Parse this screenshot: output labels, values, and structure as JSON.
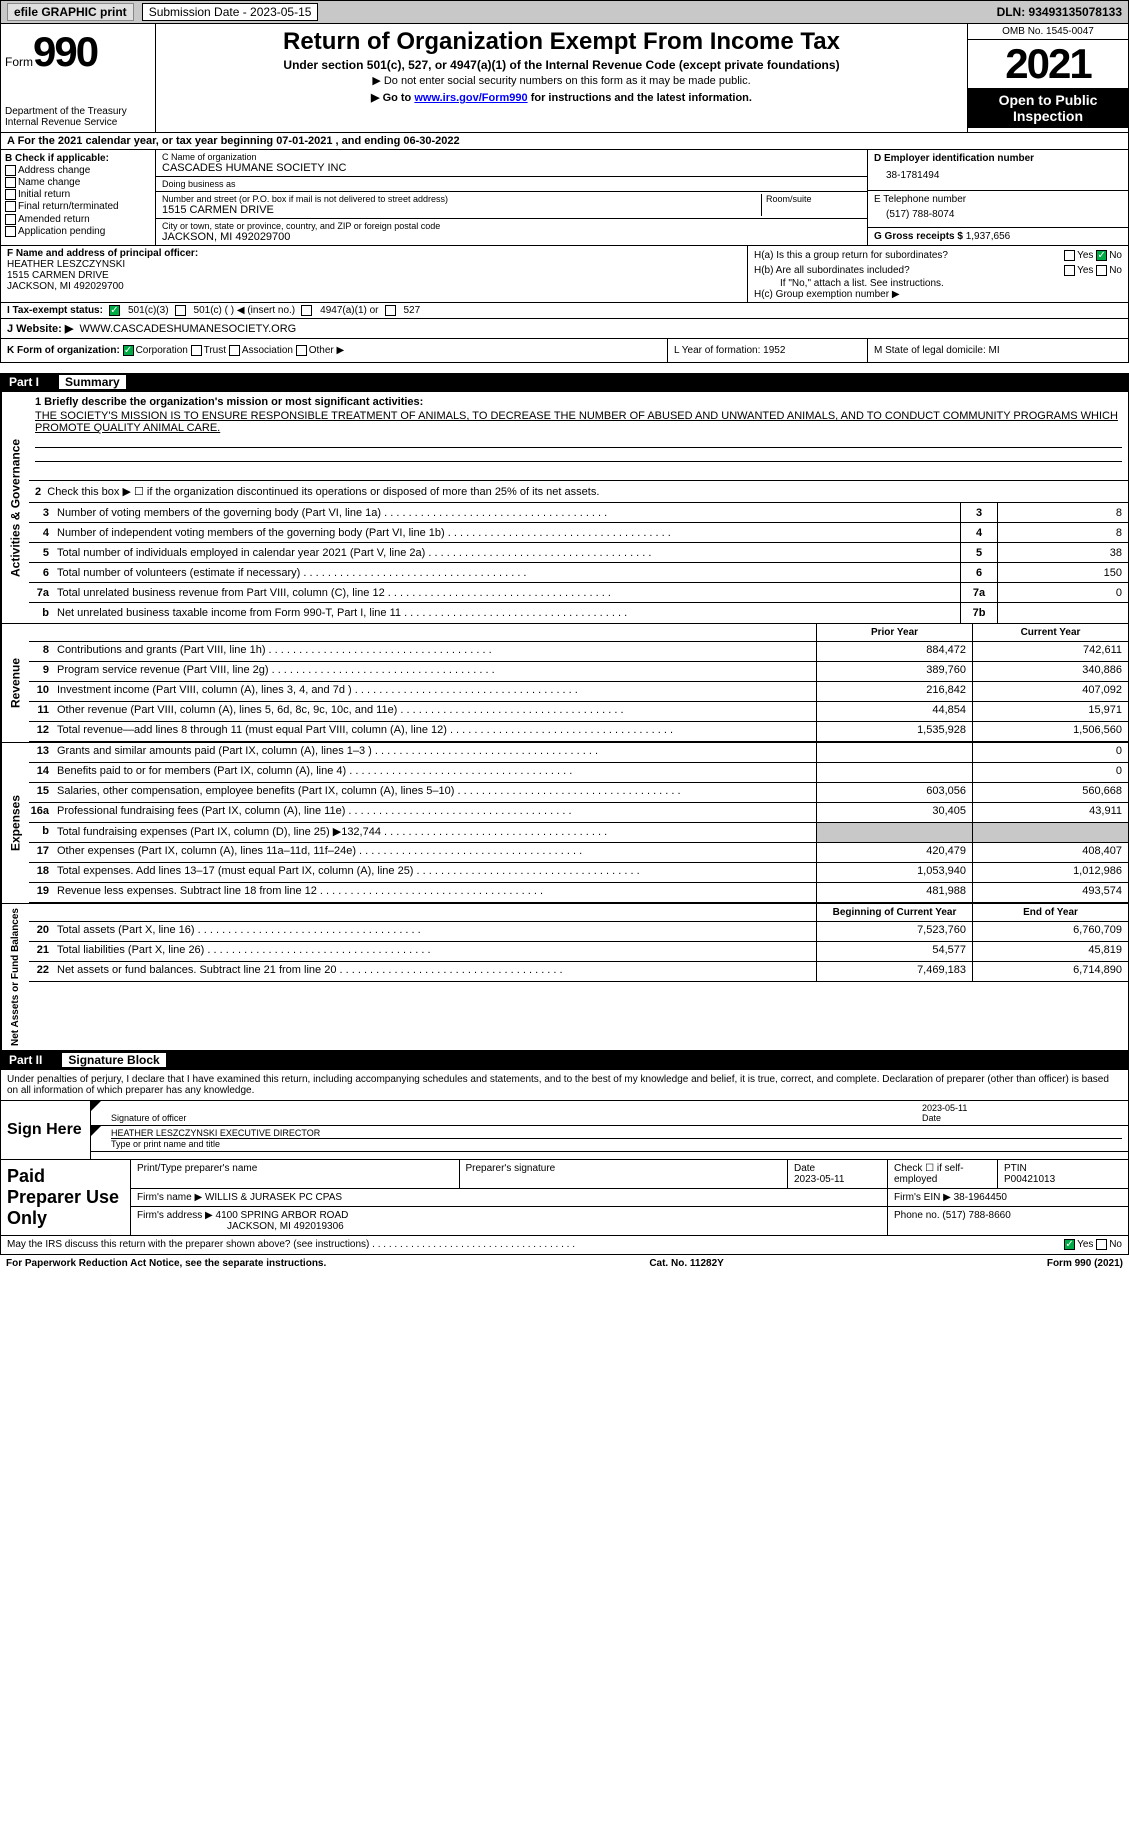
{
  "topbar": {
    "efile": "efile GRAPHIC print",
    "submission_label": "Submission Date - 2023-05-15",
    "dln": "DLN: 93493135078133"
  },
  "header": {
    "form_word": "Form",
    "form_num": "990",
    "dept": "Department of the Treasury",
    "irs": "Internal Revenue Service",
    "title": "Return of Organization Exempt From Income Tax",
    "sub1": "Under section 501(c), 527, or 4947(a)(1) of the Internal Revenue Code (except private foundations)",
    "sub2": "▶ Do not enter social security numbers on this form as it may be made public.",
    "sub3_pre": "▶ Go to ",
    "sub3_link": "www.irs.gov/Form990",
    "sub3_post": " for instructions and the latest information.",
    "omb": "OMB No. 1545-0047",
    "year": "2021",
    "inspect": "Open to Public Inspection"
  },
  "row_a": "A For the 2021 calendar year, or tax year beginning 07-01-2021    , and ending 06-30-2022",
  "col_b": {
    "hdr": "B Check if applicable:",
    "opts": [
      "Address change",
      "Name change",
      "Initial return",
      "Final return/terminated",
      "Amended return",
      "Application pending"
    ]
  },
  "col_c": {
    "name_lbl": "C Name of organization",
    "name": "CASCADES HUMANE SOCIETY INC",
    "dba_lbl": "Doing business as",
    "dba": "",
    "addr_lbl": "Number and street (or P.O. box if mail is not delivered to street address)",
    "room_lbl": "Room/suite",
    "addr": "1515 CARMEN DRIVE",
    "city_lbl": "City or town, state or province, country, and ZIP or foreign postal code",
    "city": "JACKSON, MI  492029700"
  },
  "col_d": {
    "ein_lbl": "D Employer identification number",
    "ein": "38-1781494",
    "tel_lbl": "E Telephone number",
    "tel": "(517) 788-8074",
    "gross_lbl": "G Gross receipts $",
    "gross": "1,937,656"
  },
  "col_f": {
    "lbl": "F Name and address of principal officer:",
    "name": "HEATHER LESZCZYNSKI",
    "addr1": "1515 CARMEN DRIVE",
    "addr2": "JACKSON, MI  492029700"
  },
  "col_h": {
    "ha": "H(a)  Is this a group return for subordinates?",
    "ha_yes": "Yes",
    "ha_no": "No",
    "hb": "H(b)  Are all subordinates included?",
    "hb_yes": "Yes",
    "hb_no": "No",
    "hb_note": "If \"No,\" attach a list. See instructions.",
    "hc": "H(c)  Group exemption number ▶"
  },
  "tax_status": {
    "lbl": "I   Tax-exempt status:",
    "o1": "501(c)(3)",
    "o2": "501(c) (   ) ◀ (insert no.)",
    "o3": "4947(a)(1) or",
    "o4": "527"
  },
  "website": {
    "lbl": "J   Website: ▶",
    "val": "WWW.CASCADESHUMANESOCIETY.ORG"
  },
  "form_org": {
    "k": "K Form of organization:",
    "k_opts": [
      "Corporation",
      "Trust",
      "Association",
      "Other ▶"
    ],
    "l": "L Year of formation: 1952",
    "m": "M State of legal domicile: MI"
  },
  "part1": {
    "num": "Part I",
    "title": "Summary"
  },
  "side_labels": [
    "Activities & Governance",
    "Revenue",
    "Expenses",
    "Net Assets or Fund Balances"
  ],
  "line1": {
    "lbl": "1   Briefly describe the organization's mission or most significant activities:",
    "mission": "THE SOCIETY'S MISSION IS TO ENSURE RESPONSIBLE TREATMENT OF ANIMALS, TO DECREASE THE NUMBER OF ABUSED AND UNWANTED ANIMALS, AND TO CONDUCT COMMUNITY PROGRAMS WHICH PROMOTE QUALITY ANIMAL CARE."
  },
  "line2": "Check this box ▶ ☐  if the organization discontinued its operations or disposed of more than 25% of its net assets.",
  "lines_single": [
    {
      "n": "3",
      "t": "Number of voting members of the governing body (Part VI, line 1a)",
      "bn": "3",
      "v": "8"
    },
    {
      "n": "4",
      "t": "Number of independent voting members of the governing body (Part VI, line 1b)",
      "bn": "4",
      "v": "8"
    },
    {
      "n": "5",
      "t": "Total number of individuals employed in calendar year 2021 (Part V, line 2a)",
      "bn": "5",
      "v": "38"
    },
    {
      "n": "6",
      "t": "Total number of volunteers (estimate if necessary)",
      "bn": "6",
      "v": "150"
    },
    {
      "n": "7a",
      "t": "Total unrelated business revenue from Part VIII, column (C), line 12",
      "bn": "7a",
      "v": "0"
    },
    {
      "n": "b",
      "t": "Net unrelated business taxable income from Form 990-T, Part I, line 11",
      "bn": "7b",
      "v": ""
    }
  ],
  "hdr_prior": "Prior Year",
  "hdr_current": "Current Year",
  "revenue": [
    {
      "n": "8",
      "t": "Contributions and grants (Part VIII, line 1h)",
      "v1": "884,472",
      "v2": "742,611"
    },
    {
      "n": "9",
      "t": "Program service revenue (Part VIII, line 2g)",
      "v1": "389,760",
      "v2": "340,886"
    },
    {
      "n": "10",
      "t": "Investment income (Part VIII, column (A), lines 3, 4, and 7d )",
      "v1": "216,842",
      "v2": "407,092"
    },
    {
      "n": "11",
      "t": "Other revenue (Part VIII, column (A), lines 5, 6d, 8c, 9c, 10c, and 11e)",
      "v1": "44,854",
      "v2": "15,971"
    },
    {
      "n": "12",
      "t": "Total revenue—add lines 8 through 11 (must equal Part VIII, column (A), line 12)",
      "v1": "1,535,928",
      "v2": "1,506,560"
    }
  ],
  "expenses": [
    {
      "n": "13",
      "t": "Grants and similar amounts paid (Part IX, column (A), lines 1–3 )",
      "v1": "",
      "v2": "0"
    },
    {
      "n": "14",
      "t": "Benefits paid to or for members (Part IX, column (A), line 4)",
      "v1": "",
      "v2": "0"
    },
    {
      "n": "15",
      "t": "Salaries, other compensation, employee benefits (Part IX, column (A), lines 5–10)",
      "v1": "603,056",
      "v2": "560,668"
    },
    {
      "n": "16a",
      "t": "Professional fundraising fees (Part IX, column (A), line 11e)",
      "v1": "30,405",
      "v2": "43,911"
    },
    {
      "n": "b",
      "t": "Total fundraising expenses (Part IX, column (D), line 25) ▶132,744",
      "v1": "SHADED",
      "v2": "SHADED"
    },
    {
      "n": "17",
      "t": "Other expenses (Part IX, column (A), lines 11a–11d, 11f–24e)",
      "v1": "420,479",
      "v2": "408,407"
    },
    {
      "n": "18",
      "t": "Total expenses. Add lines 13–17 (must equal Part IX, column (A), line 25)",
      "v1": "1,053,940",
      "v2": "1,012,986"
    },
    {
      "n": "19",
      "t": "Revenue less expenses. Subtract line 18 from line 12",
      "v1": "481,988",
      "v2": "493,574"
    }
  ],
  "hdr_begin": "Beginning of Current Year",
  "hdr_end": "End of Year",
  "netassets": [
    {
      "n": "20",
      "t": "Total assets (Part X, line 16)",
      "v1": "7,523,760",
      "v2": "6,760,709"
    },
    {
      "n": "21",
      "t": "Total liabilities (Part X, line 26)",
      "v1": "54,577",
      "v2": "45,819"
    },
    {
      "n": "22",
      "t": "Net assets or fund balances. Subtract line 21 from line 20",
      "v1": "7,469,183",
      "v2": "6,714,890"
    }
  ],
  "part2": {
    "num": "Part II",
    "title": "Signature Block"
  },
  "sig_text": "Under penalties of perjury, I declare that I have examined this return, including accompanying schedules and statements, and to the best of my knowledge and belief, it is true, correct, and complete. Declaration of preparer (other than officer) is based on all information of which preparer has any knowledge.",
  "sign_here": "Sign Here",
  "sig_officer_lbl": "Signature of officer",
  "sig_date": "2023-05-11",
  "sig_date_lbl": "Date",
  "sig_name": "HEATHER LESZCZYNSKI  EXECUTIVE DIRECTOR",
  "sig_name_lbl": "Type or print name and title",
  "paid_lbl": "Paid Preparer Use Only",
  "paid": {
    "p1a": "Print/Type preparer's name",
    "p1b": "Preparer's signature",
    "p1c_lbl": "Date",
    "p1c": "2023-05-11",
    "p1d": "Check ☐ if self-employed",
    "p1e_lbl": "PTIN",
    "p1e": "P00421013",
    "firm_lbl": "Firm's name    ▶",
    "firm": "WILLIS & JURASEK PC CPAS",
    "ein_lbl": "Firm's EIN ▶",
    "ein": "38-1964450",
    "addr_lbl": "Firm's address ▶",
    "addr1": "4100 SPRING ARBOR ROAD",
    "addr2": "JACKSON, MI  492019306",
    "phone_lbl": "Phone no.",
    "phone": "(517) 788-8660"
  },
  "may_discuss": "May the IRS discuss this return with the preparer shown above? (see instructions)",
  "may_yes": "Yes",
  "may_no": "No",
  "footer": {
    "l": "For Paperwork Reduction Act Notice, see the separate instructions.",
    "m": "Cat. No. 11282Y",
    "r": "Form 990 (2021)"
  }
}
